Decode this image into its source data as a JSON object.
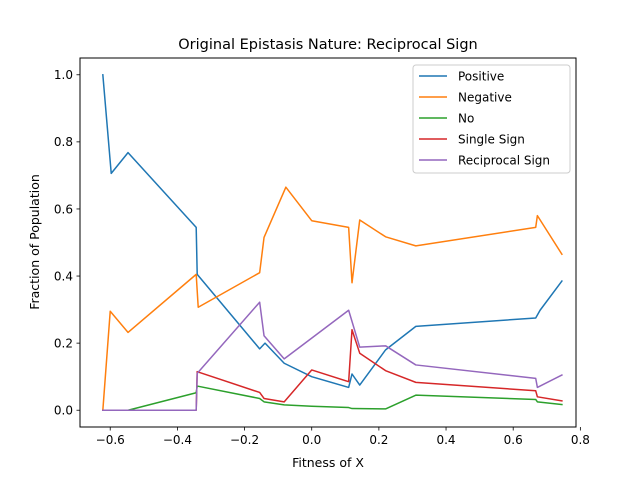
{
  "chart_data": {
    "type": "line",
    "title": "Original Epistasis Nature: Reciprocal Sign",
    "xlabel": "Fitness of X",
    "ylabel": "Fraction of Population",
    "xlim": [
      -0.69,
      0.787
    ],
    "ylim": [
      -0.05,
      1.05
    ],
    "xticks": [
      -0.6,
      -0.4,
      -0.2,
      0.0,
      0.2,
      0.4,
      0.6,
      0.8
    ],
    "xtick_labels": [
      "−0.6",
      "−0.4",
      "−0.2",
      "0.0",
      "0.2",
      "0.4",
      "0.6",
      "0.8"
    ],
    "yticks": [
      0.0,
      0.2,
      0.4,
      0.6,
      0.8,
      1.0
    ],
    "ytick_labels": [
      "0.0",
      "0.2",
      "0.4",
      "0.6",
      "0.8",
      "1.0"
    ],
    "grid": false,
    "legend_position": "top-right",
    "series": [
      {
        "name": "Positive",
        "color": "#1f77b4",
        "points": [
          [
            -0.622,
            1.0
          ],
          [
            -0.597,
            0.706
          ],
          [
            -0.547,
            0.768
          ],
          [
            -0.344,
            0.545
          ],
          [
            -0.341,
            0.405
          ],
          [
            -0.155,
            0.183
          ],
          [
            -0.139,
            0.2
          ],
          [
            -0.082,
            0.14
          ],
          [
            0.0,
            0.1
          ],
          [
            0.11,
            0.068
          ],
          [
            0.12,
            0.108
          ],
          [
            0.143,
            0.075
          ],
          [
            0.22,
            0.18
          ],
          [
            0.31,
            0.25
          ],
          [
            0.667,
            0.275
          ],
          [
            0.68,
            0.298
          ],
          [
            0.745,
            0.385
          ]
        ]
      },
      {
        "name": "Negative",
        "color": "#ff7f0e",
        "points": [
          [
            -0.622,
            0.0
          ],
          [
            -0.6,
            0.295
          ],
          [
            -0.547,
            0.232
          ],
          [
            -0.344,
            0.405
          ],
          [
            -0.338,
            0.307
          ],
          [
            -0.155,
            0.41
          ],
          [
            -0.142,
            0.515
          ],
          [
            -0.077,
            0.665
          ],
          [
            0.0,
            0.565
          ],
          [
            0.11,
            0.545
          ],
          [
            0.12,
            0.38
          ],
          [
            0.143,
            0.567
          ],
          [
            0.22,
            0.517
          ],
          [
            0.31,
            0.49
          ],
          [
            0.667,
            0.545
          ],
          [
            0.672,
            0.58
          ],
          [
            0.745,
            0.465
          ]
        ]
      },
      {
        "name": "No",
        "color": "#2ca02c",
        "points": [
          [
            -0.622,
            0.0
          ],
          [
            -0.547,
            0.0
          ],
          [
            -0.344,
            0.052
          ],
          [
            -0.341,
            0.072
          ],
          [
            -0.155,
            0.035
          ],
          [
            -0.142,
            0.025
          ],
          [
            -0.082,
            0.016
          ],
          [
            0.0,
            0.012
          ],
          [
            0.11,
            0.008
          ],
          [
            0.12,
            0.005
          ],
          [
            0.22,
            0.004
          ],
          [
            0.31,
            0.045
          ],
          [
            0.667,
            0.032
          ],
          [
            0.672,
            0.025
          ],
          [
            0.745,
            0.017
          ]
        ]
      },
      {
        "name": "Single Sign",
        "color": "#d62728",
        "points": [
          [
            -0.622,
            0.0
          ],
          [
            -0.344,
            0.0
          ],
          [
            -0.341,
            0.115
          ],
          [
            -0.155,
            0.053
          ],
          [
            -0.142,
            0.035
          ],
          [
            -0.082,
            0.025
          ],
          [
            0.0,
            0.12
          ],
          [
            0.11,
            0.085
          ],
          [
            0.12,
            0.24
          ],
          [
            0.143,
            0.17
          ],
          [
            0.22,
            0.118
          ],
          [
            0.31,
            0.083
          ],
          [
            0.667,
            0.058
          ],
          [
            0.672,
            0.04
          ],
          [
            0.745,
            0.028
          ]
        ]
      },
      {
        "name": "Reciprocal Sign",
        "color": "#9467bd",
        "points": [
          [
            -0.622,
            0.0
          ],
          [
            -0.344,
            0.0
          ],
          [
            -0.341,
            0.11
          ],
          [
            -0.155,
            0.322
          ],
          [
            -0.142,
            0.222
          ],
          [
            -0.082,
            0.153
          ],
          [
            0.0,
            0.215
          ],
          [
            0.11,
            0.298
          ],
          [
            0.143,
            0.188
          ],
          [
            0.22,
            0.192
          ],
          [
            0.31,
            0.135
          ],
          [
            0.667,
            0.095
          ],
          [
            0.672,
            0.068
          ],
          [
            0.745,
            0.105
          ]
        ]
      }
    ]
  }
}
